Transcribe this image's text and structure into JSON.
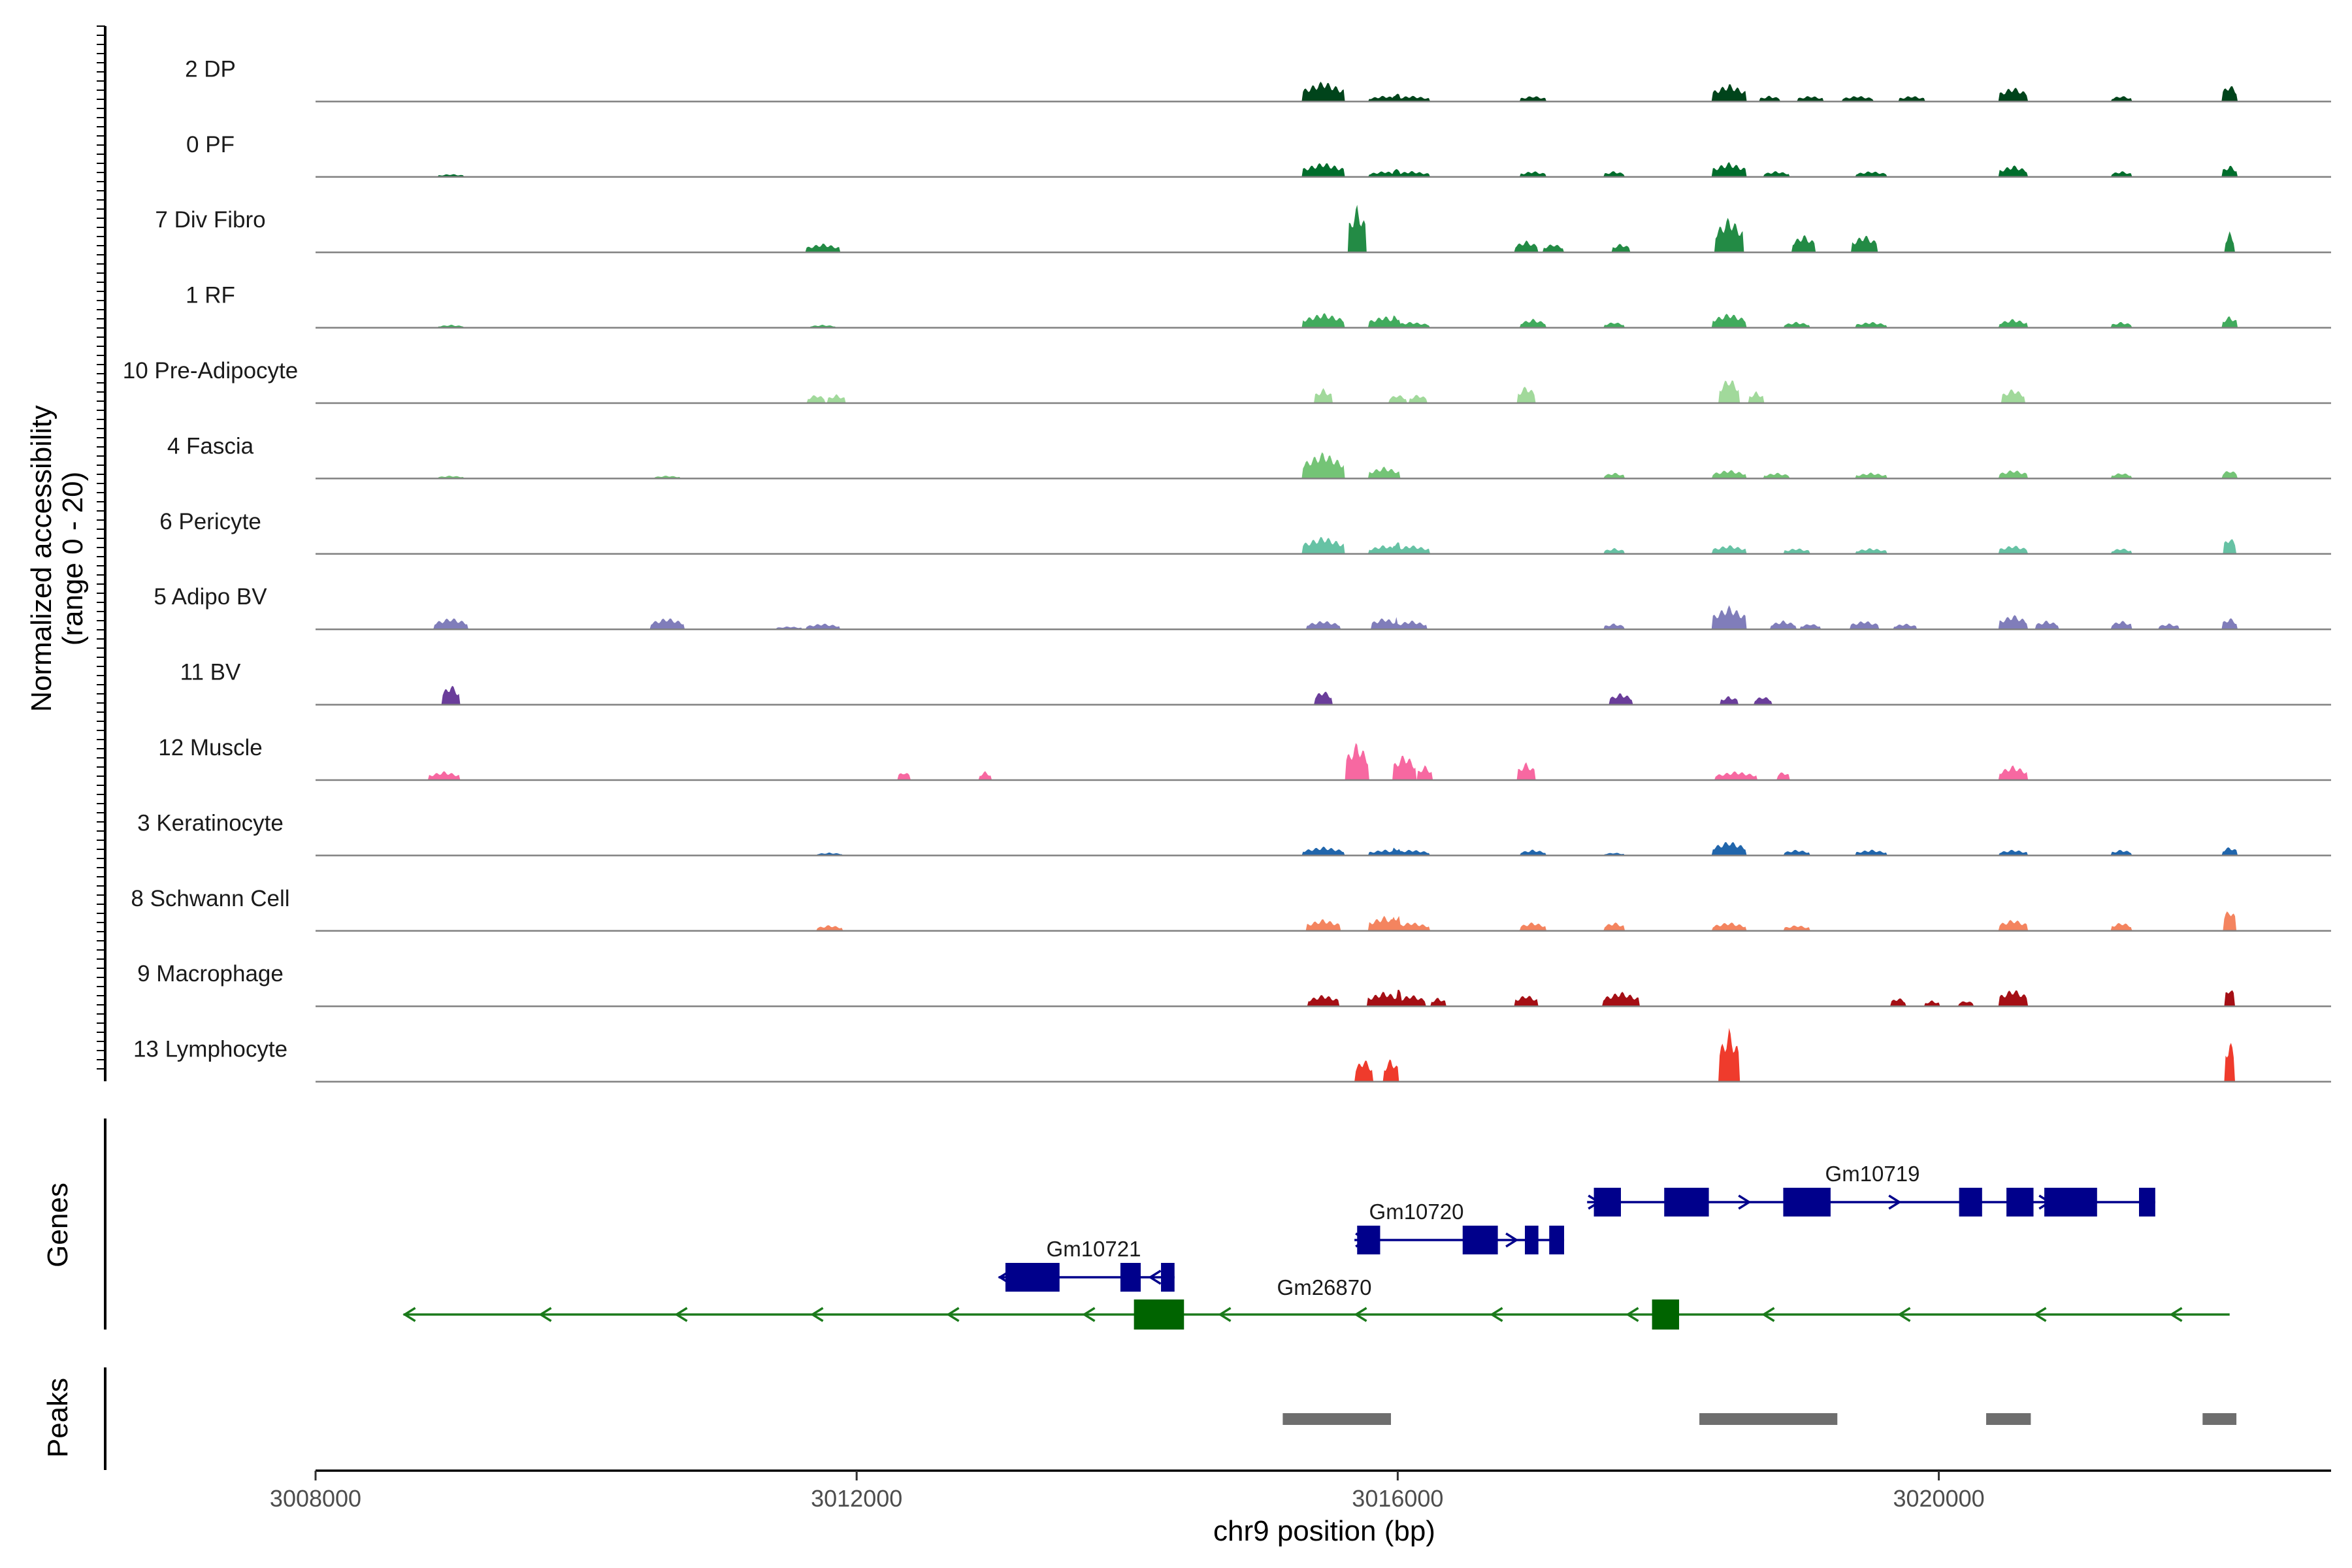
{
  "chart_data": {
    "type": "area",
    "xlabel": "chr9 position (bp)",
    "ylabel_line1": "Normalized accessibility",
    "ylabel_line2": "(range 0 - 20)",
    "y_range": [
      0,
      20
    ],
    "xlim": [
      3008000,
      3022900
    ],
    "x_ticks": [
      3008000,
      3012000,
      3016000,
      3020000
    ],
    "x_tick_labels": [
      "3008000",
      "3012000",
      "3016000",
      "3020000"
    ],
    "grid": false,
    "series": [
      {
        "name": "2 DP",
        "color": "#00441b",
        "peaks": [
          [
            3015450,
            7,
            160
          ],
          [
            3015900,
            2,
            120
          ],
          [
            3016100,
            2,
            140
          ],
          [
            3017000,
            2,
            100
          ],
          [
            3018450,
            6,
            130
          ],
          [
            3018750,
            2,
            80
          ],
          [
            3019050,
            2,
            100
          ],
          [
            3019400,
            2,
            120
          ],
          [
            3019800,
            2,
            100
          ],
          [
            3020550,
            5,
            110
          ],
          [
            3021350,
            2,
            80
          ],
          [
            3022150,
            6,
            60
          ]
        ]
      },
      {
        "name": "0 PF",
        "color": "#006d2c",
        "peaks": [
          [
            3009000,
            1,
            100
          ],
          [
            3015450,
            5,
            160
          ],
          [
            3015900,
            2,
            120
          ],
          [
            3016100,
            2,
            140
          ],
          [
            3017000,
            2,
            100
          ],
          [
            3017600,
            2,
            80
          ],
          [
            3018450,
            5,
            130
          ],
          [
            3018800,
            2,
            100
          ],
          [
            3019500,
            2,
            120
          ],
          [
            3020550,
            4,
            110
          ],
          [
            3021350,
            2,
            80
          ],
          [
            3022150,
            4,
            60
          ]
        ]
      },
      {
        "name": "7 Div Fibro",
        "color": "#238b45",
        "peaks": [
          [
            3011750,
            3,
            130
          ],
          [
            3015700,
            16,
            70
          ],
          [
            3016950,
            4,
            90
          ],
          [
            3017150,
            3,
            80
          ],
          [
            3017650,
            3,
            70
          ],
          [
            3018450,
            12,
            110
          ],
          [
            3019000,
            6,
            90
          ],
          [
            3019450,
            6,
            100
          ],
          [
            3022150,
            7,
            40
          ]
        ]
      },
      {
        "name": "1 RF",
        "color": "#41ab5d",
        "peaks": [
          [
            3009000,
            1,
            100
          ],
          [
            3011750,
            1,
            100
          ],
          [
            3015450,
            5,
            160
          ],
          [
            3015900,
            4,
            120
          ],
          [
            3016100,
            2,
            140
          ],
          [
            3017000,
            3,
            100
          ],
          [
            3017600,
            2,
            80
          ],
          [
            3018450,
            5,
            130
          ],
          [
            3018950,
            2,
            100
          ],
          [
            3019500,
            2,
            120
          ],
          [
            3020550,
            3,
            110
          ],
          [
            3021350,
            2,
            80
          ],
          [
            3022150,
            4,
            60
          ]
        ]
      },
      {
        "name": "10 Pre-Adipocyte",
        "color": "#a1d99b",
        "peaks": [
          [
            3011700,
            3,
            70
          ],
          [
            3011850,
            3,
            70
          ],
          [
            3015450,
            5,
            70
          ],
          [
            3016000,
            3,
            70
          ],
          [
            3016150,
            3,
            70
          ],
          [
            3016950,
            6,
            70
          ],
          [
            3018450,
            9,
            80
          ],
          [
            3018650,
            4,
            60
          ],
          [
            3020550,
            5,
            90
          ]
        ]
      },
      {
        "name": "4 Fascia",
        "color": "#74c476",
        "peaks": [
          [
            3009000,
            1,
            100
          ],
          [
            3010600,
            1,
            100
          ],
          [
            3015450,
            9,
            160
          ],
          [
            3015900,
            4,
            120
          ],
          [
            3017600,
            2,
            80
          ],
          [
            3018450,
            3,
            130
          ],
          [
            3018800,
            2,
            100
          ],
          [
            3019500,
            2,
            120
          ],
          [
            3020550,
            3,
            110
          ],
          [
            3021350,
            2,
            80
          ],
          [
            3022150,
            3,
            60
          ]
        ]
      },
      {
        "name": "6 Pericyte",
        "color": "#66c2a4",
        "peaks": [
          [
            3015450,
            6,
            160
          ],
          [
            3015900,
            3,
            120
          ],
          [
            3016100,
            3,
            140
          ],
          [
            3017600,
            2,
            80
          ],
          [
            3018450,
            3,
            130
          ],
          [
            3018950,
            2,
            100
          ],
          [
            3019500,
            2,
            120
          ],
          [
            3020550,
            3,
            110
          ],
          [
            3021350,
            2,
            80
          ],
          [
            3022150,
            6,
            50
          ]
        ]
      },
      {
        "name": "5 Adipo BV",
        "color": "#807dba",
        "peaks": [
          [
            3009000,
            4,
            130
          ],
          [
            3010600,
            4,
            130
          ],
          [
            3011500,
            1,
            100
          ],
          [
            3011750,
            2,
            130
          ],
          [
            3015450,
            3,
            130
          ],
          [
            3015900,
            4,
            100
          ],
          [
            3016100,
            3,
            120
          ],
          [
            3017600,
            2,
            80
          ],
          [
            3018450,
            8,
            130
          ],
          [
            3018850,
            3,
            100
          ],
          [
            3019050,
            2,
            80
          ],
          [
            3019450,
            3,
            110
          ],
          [
            3019750,
            2,
            90
          ],
          [
            3020550,
            5,
            110
          ],
          [
            3020800,
            3,
            90
          ],
          [
            3021350,
            3,
            80
          ],
          [
            3021700,
            2,
            80
          ],
          [
            3022150,
            4,
            60
          ]
        ]
      },
      {
        "name": "11 BV",
        "color": "#6a3d9a",
        "peaks": [
          [
            3009000,
            7,
            70
          ],
          [
            3015450,
            5,
            70
          ],
          [
            3017650,
            4,
            90
          ],
          [
            3018450,
            3,
            70
          ],
          [
            3018700,
            3,
            70
          ]
        ]
      },
      {
        "name": "12 Muscle",
        "color": "#f768a1",
        "peaks": [
          [
            3008950,
            3,
            120
          ],
          [
            3012350,
            3,
            50
          ],
          [
            3012950,
            3,
            50
          ],
          [
            3015700,
            13,
            90
          ],
          [
            3016050,
            9,
            90
          ],
          [
            3016200,
            5,
            60
          ],
          [
            3016950,
            6,
            70
          ],
          [
            3018500,
            3,
            160
          ],
          [
            3018850,
            3,
            50
          ],
          [
            3020550,
            5,
            110
          ]
        ]
      },
      {
        "name": "3 Keratinocyte",
        "color": "#2166ac",
        "peaks": [
          [
            3011800,
            1,
            100
          ],
          [
            3015450,
            3,
            160
          ],
          [
            3015900,
            2,
            120
          ],
          [
            3016100,
            2,
            140
          ],
          [
            3017000,
            2,
            100
          ],
          [
            3017600,
            1,
            80
          ],
          [
            3018450,
            5,
            130
          ],
          [
            3018950,
            2,
            100
          ],
          [
            3019500,
            2,
            120
          ],
          [
            3020550,
            2,
            110
          ],
          [
            3021350,
            2,
            80
          ],
          [
            3022150,
            3,
            60
          ]
        ]
      },
      {
        "name": "8 Schwann Cell",
        "color": "#f4845f",
        "peaks": [
          [
            3011800,
            2,
            100
          ],
          [
            3015450,
            4,
            130
          ],
          [
            3015900,
            5,
            120
          ],
          [
            3016100,
            3,
            140
          ],
          [
            3017000,
            3,
            100
          ],
          [
            3017600,
            3,
            80
          ],
          [
            3018450,
            3,
            130
          ],
          [
            3018950,
            2,
            100
          ],
          [
            3020550,
            4,
            110
          ],
          [
            3021350,
            3,
            80
          ],
          [
            3022150,
            8,
            50
          ]
        ]
      },
      {
        "name": "9 Macrophage",
        "color": "#a50f15",
        "peaks": [
          [
            3015450,
            4,
            120
          ],
          [
            3015900,
            5,
            130
          ],
          [
            3016100,
            4,
            110
          ],
          [
            3016300,
            3,
            60
          ],
          [
            3016950,
            4,
            90
          ],
          [
            3017650,
            5,
            140
          ],
          [
            3019700,
            3,
            60
          ],
          [
            3019950,
            2,
            60
          ],
          [
            3020200,
            2,
            60
          ],
          [
            3020550,
            6,
            110
          ],
          [
            3022150,
            7,
            40
          ]
        ]
      },
      {
        "name": "13 Lymphocyte",
        "color": "#ef3b2c",
        "peaks": [
          [
            3015750,
            8,
            70
          ],
          [
            3015950,
            8,
            60
          ],
          [
            3018450,
            18,
            80
          ],
          [
            3022150,
            15,
            40
          ]
        ]
      }
    ],
    "genes": [
      {
        "name": "Gm10721",
        "strand": "-",
        "start": 3013050,
        "end": 3014350,
        "exons": [
          [
            3013100,
            3013500
          ],
          [
            3013950,
            3014100
          ],
          [
            3014250,
            3014350
          ]
        ]
      },
      {
        "name": "Gm10720",
        "strand": "+",
        "start": 3015680,
        "end": 3017230,
        "exons": [
          [
            3015700,
            3015870
          ],
          [
            3016480,
            3016740
          ],
          [
            3016940,
            3017040
          ],
          [
            3017120,
            3017230
          ]
        ]
      },
      {
        "name": "Gm10719",
        "strand": "+",
        "start": 3017400,
        "end": 3021600,
        "exons": [
          [
            3017450,
            3017650
          ],
          [
            3017970,
            3018300
          ],
          [
            3018850,
            3019200
          ],
          [
            3020150,
            3020320
          ],
          [
            3020500,
            3020700
          ],
          [
            3020780,
            3021170
          ],
          [
            3021480,
            3021600
          ]
        ]
      },
      {
        "name": "Gm26870",
        "strand": "-",
        "start": 3008650,
        "end": 3022150,
        "exons": [
          [
            3014050,
            3014420
          ],
          [
            3017880,
            3018080
          ]
        ]
      }
    ],
    "peaks_track": [
      [
        3015150,
        3015950
      ],
      [
        3018230,
        3019250
      ],
      [
        3020350,
        3020680
      ],
      [
        3021950,
        3022200
      ]
    ]
  },
  "track_labels": {
    "genes": "Genes",
    "peaks": "Peaks"
  }
}
